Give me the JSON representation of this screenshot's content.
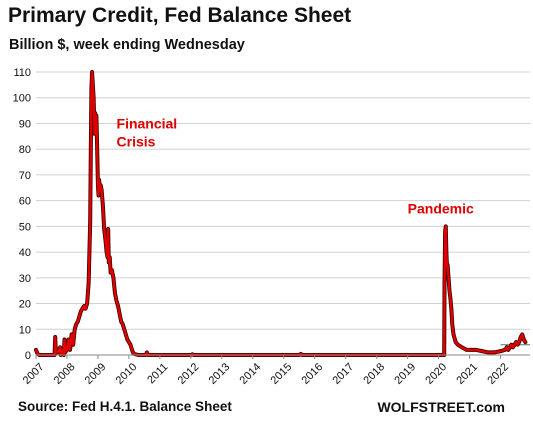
{
  "header": {
    "title": "Primary Credit, Fed Balance Sheet",
    "subtitle": "Billion $, week ending Wednesday"
  },
  "footer": {
    "source": "Source: Fed H.4.1. Balance Sheet",
    "brand": "WOLFSTREET.com"
  },
  "colors": {
    "series": "#e00000",
    "series_edge": "#3a0000",
    "grid": "#d0d0d0",
    "reference_line": "#2e8b57"
  },
  "chart_data": {
    "type": "line",
    "title": "Primary Credit, Fed Balance Sheet",
    "subtitle": "Billion $, week ending Wednesday",
    "xlabel": "",
    "ylabel": "",
    "xlim": [
      2007.0,
      2022.95
    ],
    "ylim": [
      0,
      110
    ],
    "yticks": [
      0,
      10,
      20,
      30,
      40,
      50,
      60,
      70,
      80,
      90,
      100,
      110
    ],
    "xticks": [
      "2007",
      "2008",
      "2009",
      "2010",
      "2011",
      "2012",
      "2013",
      "2014",
      "2015",
      "2016",
      "2017",
      "2018",
      "2019",
      "2020",
      "2021",
      "2022"
    ],
    "grid": "horizontal",
    "annotations": [
      {
        "text": "Financial",
        "x": 2009.6,
        "y": 88
      },
      {
        "text": "Crisis",
        "x": 2009.6,
        "y": 81
      },
      {
        "text": "Pandemic",
        "x": 2019.0,
        "y": 55
      }
    ],
    "reference_line": {
      "from": 2022.0,
      "to": 2022.95,
      "y": 4
    },
    "series": [
      {
        "points": [
          [
            2007.0,
            2
          ],
          [
            2007.05,
            0.5
          ],
          [
            2007.1,
            0
          ],
          [
            2007.6,
            0
          ],
          [
            2007.62,
            7
          ],
          [
            2007.64,
            1
          ],
          [
            2007.7,
            1
          ],
          [
            2007.78,
            3
          ],
          [
            2007.8,
            0
          ],
          [
            2007.85,
            2
          ],
          [
            2007.9,
            0
          ],
          [
            2007.92,
            6
          ],
          [
            2007.94,
            1
          ],
          [
            2008.0,
            2
          ],
          [
            2008.05,
            6
          ],
          [
            2008.1,
            2
          ],
          [
            2008.15,
            8
          ],
          [
            2008.2,
            4
          ],
          [
            2008.25,
            10
          ],
          [
            2008.3,
            12
          ],
          [
            2008.35,
            13
          ],
          [
            2008.4,
            15
          ],
          [
            2008.45,
            17
          ],
          [
            2008.5,
            18
          ],
          [
            2008.55,
            19
          ],
          [
            2008.6,
            18
          ],
          [
            2008.65,
            20
          ],
          [
            2008.7,
            28
          ],
          [
            2008.75,
            52
          ],
          [
            2008.77,
            80
          ],
          [
            2008.79,
            104
          ],
          [
            2008.81,
            110
          ],
          [
            2008.83,
            106
          ],
          [
            2008.86,
            100
          ],
          [
            2008.89,
            86
          ],
          [
            2008.91,
            94
          ],
          [
            2008.93,
            90
          ],
          [
            2008.95,
            93
          ],
          [
            2008.97,
            83
          ],
          [
            2009.0,
            66
          ],
          [
            2009.02,
            62
          ],
          [
            2009.04,
            68
          ],
          [
            2009.06,
            64
          ],
          [
            2009.09,
            66
          ],
          [
            2009.12,
            64
          ],
          [
            2009.16,
            58
          ],
          [
            2009.2,
            49
          ],
          [
            2009.24,
            45
          ],
          [
            2009.28,
            40
          ],
          [
            2009.31,
            38
          ],
          [
            2009.33,
            49
          ],
          [
            2009.35,
            36
          ],
          [
            2009.38,
            38
          ],
          [
            2009.41,
            32
          ],
          [
            2009.45,
            33
          ],
          [
            2009.5,
            30
          ],
          [
            2009.55,
            24
          ],
          [
            2009.6,
            21
          ],
          [
            2009.65,
            19
          ],
          [
            2009.7,
            16
          ],
          [
            2009.75,
            13
          ],
          [
            2009.8,
            12
          ],
          [
            2009.85,
            10
          ],
          [
            2009.9,
            8
          ],
          [
            2009.95,
            6
          ],
          [
            2010.0,
            5
          ],
          [
            2010.05,
            4
          ],
          [
            2010.1,
            2
          ],
          [
            2010.15,
            0.5
          ],
          [
            2010.3,
            0
          ],
          [
            2010.55,
            0
          ],
          [
            2010.58,
            1
          ],
          [
            2010.62,
            0
          ],
          [
            2011.0,
            0
          ],
          [
            2012.0,
            0
          ],
          [
            2012.05,
            0.3
          ],
          [
            2012.1,
            0
          ],
          [
            2013.0,
            0
          ],
          [
            2014.0,
            0
          ],
          [
            2015.0,
            0
          ],
          [
            2015.5,
            0
          ],
          [
            2015.55,
            0.4
          ],
          [
            2015.6,
            0
          ],
          [
            2016.0,
            0
          ],
          [
            2017.0,
            0
          ],
          [
            2018.0,
            0
          ],
          [
            2019.0,
            0
          ],
          [
            2020.0,
            0
          ],
          [
            2020.18,
            0
          ],
          [
            2020.19,
            28
          ],
          [
            2020.21,
            48
          ],
          [
            2020.23,
            50
          ],
          [
            2020.25,
            40
          ],
          [
            2020.27,
            34
          ],
          [
            2020.29,
            35
          ],
          [
            2020.32,
            30
          ],
          [
            2020.35,
            25
          ],
          [
            2020.38,
            22
          ],
          [
            2020.41,
            18
          ],
          [
            2020.44,
            12
          ],
          [
            2020.48,
            8
          ],
          [
            2020.55,
            5
          ],
          [
            2020.62,
            4
          ],
          [
            2020.75,
            3
          ],
          [
            2020.9,
            2
          ],
          [
            2021.0,
            2
          ],
          [
            2021.2,
            2
          ],
          [
            2021.4,
            1.5
          ],
          [
            2021.6,
            1
          ],
          [
            2021.8,
            1
          ],
          [
            2022.0,
            1.5
          ],
          [
            2022.15,
            2
          ],
          [
            2022.2,
            3
          ],
          [
            2022.25,
            2
          ],
          [
            2022.3,
            3
          ],
          [
            2022.35,
            4
          ],
          [
            2022.4,
            3
          ],
          [
            2022.45,
            4
          ],
          [
            2022.5,
            5
          ],
          [
            2022.55,
            4
          ],
          [
            2022.6,
            5
          ],
          [
            2022.65,
            7
          ],
          [
            2022.7,
            8
          ],
          [
            2022.75,
            6
          ],
          [
            2022.8,
            5
          ]
        ]
      }
    ]
  }
}
